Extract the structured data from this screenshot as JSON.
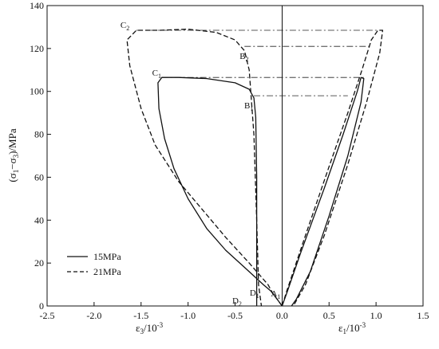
{
  "chart_data": {
    "type": "line",
    "title": "",
    "ylabel": {
      "open": "(σ",
      "s1": "1",
      "mid": "−σ",
      "s3": "3",
      "close": ")/MPa"
    },
    "xlabel_left": {
      "base": "ε",
      "sub": "3",
      "unit": "/10",
      "exp": "-3"
    },
    "xlabel_right": {
      "base": "ε",
      "sub": "1",
      "unit": "/10",
      "exp": "-3"
    },
    "xlim": [
      -2.5,
      1.5
    ],
    "ylim": [
      0,
      140
    ],
    "x_ticks": [
      -2.5,
      -2.0,
      -1.5,
      -1.0,
      -0.5,
      0.0,
      0.5,
      1.0,
      1.5
    ],
    "x_tick_labels": [
      "-2.5",
      "-2.0",
      "-1.5",
      "-1.0",
      "-0.5",
      "0.0",
      "0.5",
      "1.0",
      "1.5"
    ],
    "y_ticks": [
      0,
      20,
      40,
      60,
      80,
      100,
      120,
      140
    ],
    "y_tick_labels": [
      "0",
      "20",
      "40",
      "60",
      "80",
      "100",
      "120",
      "140"
    ],
    "legend": {
      "placement": "bottom-left",
      "entries": [
        {
          "name": "15MPa",
          "dash": "solid"
        },
        {
          "name": "21MPa",
          "dash": "dashed"
        }
      ]
    },
    "series": [
      {
        "name": "15MPa",
        "dash": "solid",
        "lateral_curve": [
          [
            0.0,
            0
          ],
          [
            -0.05,
            3
          ],
          [
            -0.12,
            7
          ],
          [
            -0.2,
            10
          ],
          [
            -0.4,
            18
          ],
          [
            -0.6,
            26
          ],
          [
            -0.8,
            36
          ],
          [
            -1.0,
            50
          ],
          [
            -1.15,
            64
          ],
          [
            -1.25,
            78
          ],
          [
            -1.31,
            92
          ],
          [
            -1.32,
            104
          ],
          [
            -1.28,
            106.5
          ],
          [
            -1.1,
            106.5
          ],
          [
            -0.8,
            106
          ],
          [
            -0.5,
            104
          ],
          [
            -0.35,
            101
          ],
          [
            -0.3,
            97
          ],
          [
            -0.28,
            88
          ],
          [
            -0.27,
            60
          ],
          [
            -0.27,
            30
          ],
          [
            -0.27,
            0
          ]
        ],
        "axial_curve": [
          [
            0.0,
            0
          ],
          [
            0.05,
            6
          ],
          [
            0.2,
            25
          ],
          [
            0.45,
            55
          ],
          [
            0.65,
            80
          ],
          [
            0.8,
            100
          ],
          [
            0.84,
            106.5
          ],
          [
            0.87,
            106
          ],
          [
            0.84,
            95
          ],
          [
            0.7,
            70
          ],
          [
            0.5,
            42
          ],
          [
            0.3,
            16
          ],
          [
            0.15,
            3
          ],
          [
            0.1,
            0
          ]
        ]
      },
      {
        "name": "21MPa",
        "dash": "dashed",
        "lateral_curve": [
          [
            0.0,
            0
          ],
          [
            -0.05,
            3
          ],
          [
            -0.1,
            6
          ],
          [
            -0.15,
            10
          ],
          [
            -0.35,
            20
          ],
          [
            -0.6,
            32
          ],
          [
            -0.85,
            45
          ],
          [
            -1.1,
            58
          ],
          [
            -1.35,
            75
          ],
          [
            -1.5,
            92
          ],
          [
            -1.62,
            112
          ],
          [
            -1.65,
            124
          ],
          [
            -1.55,
            128.5
          ],
          [
            -1.3,
            128.5
          ],
          [
            -1.0,
            129
          ],
          [
            -0.7,
            127.5
          ],
          [
            -0.5,
            124
          ],
          [
            -0.4,
            119
          ],
          [
            -0.35,
            110
          ],
          [
            -0.3,
            80
          ],
          [
            -0.27,
            40
          ],
          [
            -0.25,
            10
          ],
          [
            -0.22,
            0
          ]
        ],
        "axial_curve": [
          [
            0.0,
            0
          ],
          [
            0.05,
            7
          ],
          [
            0.25,
            33
          ],
          [
            0.5,
            65
          ],
          [
            0.7,
            90
          ],
          [
            0.85,
            110
          ],
          [
            0.95,
            124
          ],
          [
            1.02,
            128.5
          ],
          [
            1.07,
            128.5
          ],
          [
            1.04,
            118
          ],
          [
            0.9,
            95
          ],
          [
            0.7,
            66
          ],
          [
            0.45,
            33
          ],
          [
            0.25,
            10
          ],
          [
            0.12,
            0
          ]
        ]
      }
    ],
    "guide_lines": [
      {
        "from": [
          -1.55,
          128.5
        ],
        "to": [
          1.07,
          128.5
        ]
      },
      {
        "from": [
          -0.4,
          121
        ],
        "to": [
          0.95,
          121
        ]
      },
      {
        "from": [
          -1.28,
          106.5
        ],
        "to": [
          0.87,
          106.5
        ]
      },
      {
        "from": [
          -0.3,
          98
        ],
        "to": [
          0.7,
          98
        ]
      }
    ],
    "point_labels": [
      {
        "letter": "C",
        "sub": "2",
        "x": -1.55,
        "y": 128.5
      },
      {
        "letter": "B",
        "sub": "2",
        "x": -0.4,
        "y": 121
      },
      {
        "letter": "C",
        "sub": "1",
        "x": -1.28,
        "y": 106.5
      },
      {
        "letter": "B",
        "sub": "1",
        "x": -0.3,
        "y": 98
      },
      {
        "letter": "D",
        "sub": "2",
        "x": -0.25,
        "y": 0
      },
      {
        "letter": "D",
        "sub": "1",
        "x": -0.2,
        "y": 0
      },
      {
        "letter": "A",
        "sub": "1",
        "x": 0.0,
        "y": 0
      }
    ]
  }
}
